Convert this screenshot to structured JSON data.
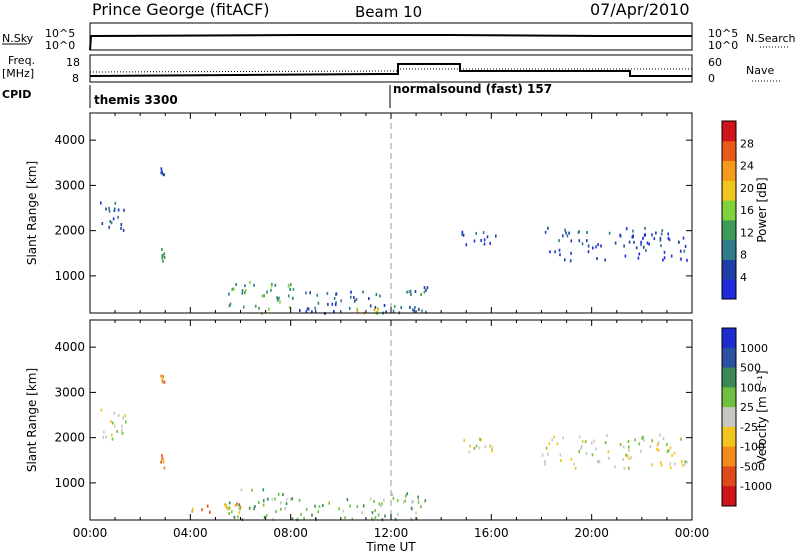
{
  "header": {
    "station": "Prince George (fitACF)",
    "beam": "Beam 10",
    "date": "07/Apr/2010"
  },
  "top_panels": {
    "nsky_label": "N.Sky",
    "nsky_ticks": [
      "10^5",
      "10^0"
    ],
    "nsearch_label": "N.Search",
    "freq_label_line1": "Freq.",
    "freq_label_line2": "[MHz]",
    "freq_ticks": [
      "18",
      "8"
    ],
    "nave_ticks": [
      "60",
      "0"
    ],
    "nave_label": "Nave",
    "cpid_label": "CPID",
    "cpid_segments": [
      {
        "name": "themis 3300",
        "start_hour": 0
      },
      {
        "name": "normalsound (fast) 157",
        "start_hour": 12
      }
    ]
  },
  "colors": {
    "power": [
      "#1d2bd9",
      "#1f3fa8",
      "#2f7b8a",
      "#3e9a57",
      "#7fd23a",
      "#f2c41e",
      "#f39b1b",
      "#e85a17",
      "#d0141c"
    ],
    "velocity": [
      "#1c2ccf",
      "#2b4fa3",
      "#3a8a57",
      "#6fc03f",
      "#c8c8c0",
      "#f2c41e",
      "#f18c1c",
      "#e04a1a",
      "#d0141c"
    ]
  },
  "chart_data": [
    {
      "type": "heatmap",
      "title": "Power",
      "ylabel": "Slant Range [km]",
      "xlabel": "Time UT",
      "xlim": [
        0,
        24
      ],
      "ylim": [
        180,
        4600
      ],
      "x_ticks": [
        "00:00",
        "04:00",
        "08:00",
        "12:00",
        "16:00",
        "20:00",
        "00:00"
      ],
      "y_ticks": [
        1000,
        2000,
        3000,
        4000
      ],
      "colorbar_label": "Power [dB]",
      "colorbar_ticks": [
        "4",
        "8",
        "12",
        "16",
        "20",
        "24",
        "28"
      ],
      "colorbar_range": [
        0,
        30
      ],
      "dashed_marker_hour": 12,
      "echo_regions": [
        {
          "t0": 0.4,
          "t1": 1.4,
          "r0": 2000,
          "r1": 2700,
          "level": 1
        },
        {
          "t0": 2.8,
          "t1": 2.95,
          "r0": 1300,
          "r1": 1650,
          "level": 3
        },
        {
          "t0": 2.8,
          "t1": 2.95,
          "r0": 3250,
          "r1": 3400,
          "level": 1
        },
        {
          "t0": 5.5,
          "t1": 8.2,
          "r0": 200,
          "r1": 900,
          "level": 3
        },
        {
          "t0": 8.2,
          "t1": 11.8,
          "r0": 200,
          "r1": 700,
          "level": 1
        },
        {
          "t0": 10.5,
          "t1": 11.5,
          "r0": 200,
          "r1": 350,
          "level": 5
        },
        {
          "t0": 12.0,
          "t1": 13.5,
          "r0": 200,
          "r1": 800,
          "level": 2
        },
        {
          "t0": 14.8,
          "t1": 16.2,
          "r0": 1700,
          "r1": 2000,
          "level": 1
        },
        {
          "t0": 18.0,
          "t1": 23.8,
          "r0": 1350,
          "r1": 2100,
          "level": 1
        }
      ]
    },
    {
      "type": "heatmap",
      "title": "Velocity",
      "ylabel": "Slant Range [km]",
      "xlabel": "Time UT",
      "xlim": [
        0,
        24
      ],
      "ylim": [
        180,
        4600
      ],
      "x_ticks": [
        "00:00",
        "04:00",
        "08:00",
        "12:00",
        "16:00",
        "20:00",
        "00:00"
      ],
      "y_ticks": [
        1000,
        2000,
        3000,
        4000
      ],
      "colorbar_label": "Velocity [m s⁻¹]",
      "colorbar_ticks": [
        "1000",
        "500",
        "100",
        "25",
        "-25",
        "-100",
        "-500",
        "-1000"
      ],
      "dashed_marker_hour": 12,
      "echo_regions": [
        {
          "t0": 0.4,
          "t1": 1.4,
          "r0": 2000,
          "r1": 2700,
          "level": 4
        },
        {
          "t0": 2.8,
          "t1": 2.95,
          "r0": 1300,
          "r1": 1650,
          "level": 6
        },
        {
          "t0": 2.8,
          "t1": 2.95,
          "r0": 3250,
          "r1": 3400,
          "level": 6
        },
        {
          "t0": 5.5,
          "t1": 8.2,
          "r0": 200,
          "r1": 900,
          "level": 3
        },
        {
          "t0": 8.2,
          "t1": 11.8,
          "r0": 200,
          "r1": 700,
          "level": 3
        },
        {
          "t0": 4.0,
          "t1": 6.0,
          "r0": 350,
          "r1": 600,
          "level": 6
        },
        {
          "t0": 12.0,
          "t1": 13.5,
          "r0": 200,
          "r1": 800,
          "level": 3
        },
        {
          "t0": 14.8,
          "t1": 16.2,
          "r0": 1700,
          "r1": 2000,
          "level": 4
        },
        {
          "t0": 18.0,
          "t1": 23.8,
          "r0": 1350,
          "r1": 2100,
          "level": 4
        }
      ]
    }
  ]
}
